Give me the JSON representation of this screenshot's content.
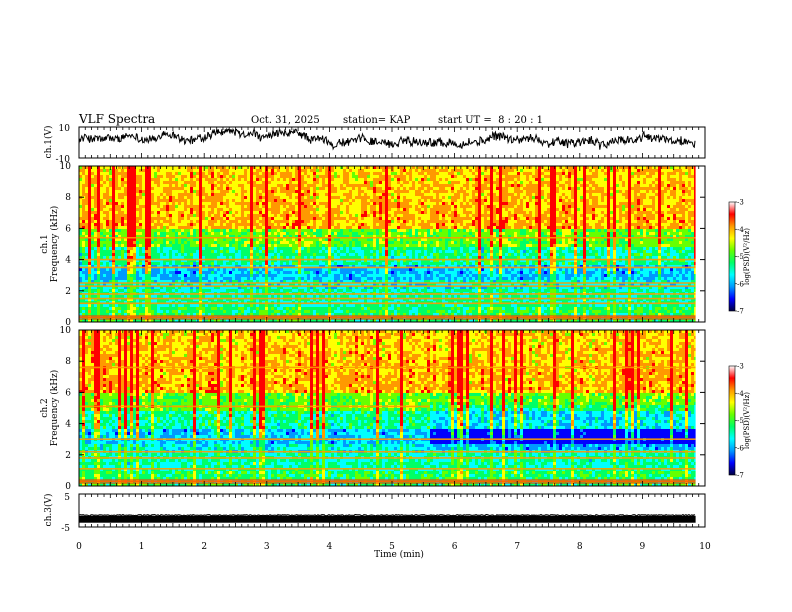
{
  "header": {
    "title": "VLF Spectra",
    "date": "Oct. 31, 2025",
    "station": "station= KAP",
    "start_ut": "start UT =  8 : 20 : 1"
  },
  "colors": {
    "ink": "#000000",
    "cmap": [
      "#000040",
      "#0000ff",
      "#0099ff",
      "#00ffff",
      "#00ff66",
      "#66ff00",
      "#ffff00",
      "#ff9900",
      "#ff0000",
      "#ffffff"
    ]
  },
  "chart_data": [
    {
      "type": "line",
      "name": "ch1-waveform",
      "ylabel": "ch.1(V)",
      "ylim": [
        -10,
        10
      ],
      "y_ticks": [
        "10",
        "-10"
      ],
      "x_range_min": [
        0,
        9.85
      ],
      "note": "noisy waveform oscillating roughly between -4 and +7 V"
    },
    {
      "type": "heatmap",
      "name": "ch1-spectrogram",
      "ylabel_ch": "ch.1",
      "ylabel": "Frequency (kHz)",
      "ylim_khz": [
        0,
        10
      ],
      "y_ticks": [
        "0",
        "2",
        "4",
        "6",
        "8",
        "10"
      ],
      "colorbar": {
        "label": "log(PSD)(V²/Hz)",
        "range": [
          -7,
          -3
        ],
        "ticks": [
          "-3",
          "-4",
          "-5",
          "-6",
          "-7"
        ]
      },
      "bands_khz": [
        0.3,
        1.2,
        1.5,
        1.8,
        2.3,
        2.5,
        3.5,
        4.0,
        5.4
      ],
      "x_range_min": [
        0,
        9.85
      ]
    },
    {
      "type": "heatmap",
      "name": "ch2-spectrogram",
      "ylabel_ch": "ch.2",
      "ylabel": "Frequency (kHz)",
      "ylim_khz": [
        0,
        10
      ],
      "y_ticks": [
        "0",
        "2",
        "4",
        "6",
        "8",
        "10"
      ],
      "colorbar": {
        "label": "log(PSD)(V²/Hz)",
        "range": [
          -7,
          -3
        ],
        "ticks": [
          "-3",
          "-4",
          "-5",
          "-6",
          "-7"
        ]
      },
      "bands_khz": [
        0.3,
        1.1,
        1.8,
        2.2,
        3.0,
        5.1,
        7.6
      ],
      "x_range_min": [
        0,
        9.85
      ]
    },
    {
      "type": "line",
      "name": "ch3-waveform",
      "ylabel": "ch.3(V)",
      "ylim": [
        -5,
        5
      ],
      "y_ticks": [
        "5",
        "-5"
      ],
      "x_range_min": [
        0,
        9.85
      ],
      "note": "dense thick trace centred around -3 V"
    }
  ],
  "x_axis": {
    "label": "Time (min)",
    "ticks": [
      "0",
      "1",
      "2",
      "3",
      "4",
      "5",
      "6",
      "7",
      "8",
      "9",
      "10"
    ],
    "range": [
      0,
      10
    ]
  }
}
